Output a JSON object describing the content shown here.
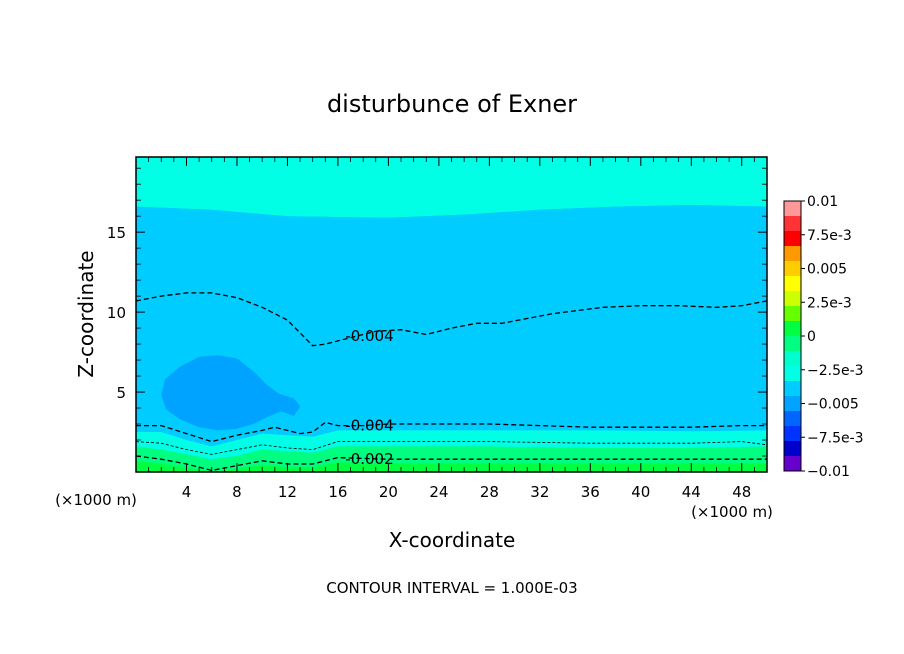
{
  "chart_data": {
    "type": "heatmap",
    "title": "disturbunce of Exner",
    "xlabel": "X-coordinate",
    "ylabel": "Z-coordinate",
    "x_unit": "(×1000 m)",
    "y_unit": "(×1000 m)",
    "xlim": [
      0,
      50
    ],
    "ylim": [
      0,
      19.7
    ],
    "x_ticks": [
      "4",
      "8",
      "12",
      "16",
      "20",
      "24",
      "28",
      "32",
      "36",
      "40",
      "44",
      "48"
    ],
    "y_ticks": [
      "5",
      "10",
      "15"
    ],
    "footer": "CONTOUR INTERVAL = 1.000E-03",
    "colorbar": {
      "labels": [
        "0.01",
        "7.5e-3",
        "0.005",
        "2.5e-3",
        "0",
        "−2.5e-3",
        "−0.005",
        "−7.5e-3",
        "−0.01"
      ],
      "min": -0.01,
      "max": 0.01
    },
    "contour_labels": [
      {
        "text": "-0.004",
        "x": 18.5,
        "z": 8.5
      },
      {
        "text": "-0.004",
        "x": 18.5,
        "z": 2.9
      },
      {
        "text": "-0.002",
        "x": 18.5,
        "z": 0.8
      }
    ],
    "contours": [
      {
        "level": -0.004,
        "points": [
          [
            0,
            10.7
          ],
          [
            2,
            11.0
          ],
          [
            4,
            11.2
          ],
          [
            6,
            11.2
          ],
          [
            8,
            10.9
          ],
          [
            10,
            10.3
          ],
          [
            12,
            9.5
          ],
          [
            13.5,
            8.3
          ],
          [
            14,
            7.9
          ],
          [
            15,
            8.0
          ],
          [
            17,
            8.4
          ],
          [
            19,
            8.8
          ],
          [
            21,
            8.9
          ],
          [
            23,
            8.6
          ],
          [
            25,
            9.0
          ],
          [
            27,
            9.3
          ],
          [
            29,
            9.3
          ],
          [
            31,
            9.6
          ],
          [
            33,
            9.9
          ],
          [
            35,
            10.1
          ],
          [
            37,
            10.3
          ],
          [
            40,
            10.4
          ],
          [
            43,
            10.4
          ],
          [
            46,
            10.3
          ],
          [
            48,
            10.4
          ],
          [
            50,
            10.7
          ]
        ]
      },
      {
        "level": -0.004,
        "points": [
          [
            0,
            2.9
          ],
          [
            2,
            2.9
          ],
          [
            4,
            2.4
          ],
          [
            6,
            1.9
          ],
          [
            8,
            2.3
          ],
          [
            10,
            2.6
          ],
          [
            11,
            2.8
          ],
          [
            12,
            2.6
          ],
          [
            13,
            2.4
          ],
          [
            14,
            2.5
          ],
          [
            15,
            3.1
          ],
          [
            16,
            2.9
          ],
          [
            18,
            2.9
          ],
          [
            20,
            3.0
          ],
          [
            24,
            3.0
          ],
          [
            28,
            3.0
          ],
          [
            32,
            2.9
          ],
          [
            36,
            2.8
          ],
          [
            40,
            2.8
          ],
          [
            44,
            2.8
          ],
          [
            48,
            2.9
          ],
          [
            50,
            2.9
          ]
        ]
      },
      {
        "level": -0.003,
        "points": [
          [
            0,
            1.9
          ],
          [
            2,
            1.8
          ],
          [
            4,
            1.4
          ],
          [
            6,
            1.1
          ],
          [
            8,
            1.4
          ],
          [
            10,
            1.7
          ],
          [
            12,
            1.5
          ],
          [
            14,
            1.4
          ],
          [
            16,
            1.9
          ],
          [
            20,
            1.9
          ],
          [
            28,
            1.9
          ],
          [
            36,
            1.8
          ],
          [
            44,
            1.8
          ],
          [
            48,
            1.9
          ],
          [
            50,
            1.7
          ]
        ]
      },
      {
        "level": -0.002,
        "points": [
          [
            0,
            1.0
          ],
          [
            2,
            0.8
          ],
          [
            4,
            0.5
          ],
          [
            6,
            0.1
          ],
          [
            8,
            0.4
          ],
          [
            10,
            0.7
          ],
          [
            12,
            0.5
          ],
          [
            14,
            0.5
          ],
          [
            16,
            0.9
          ],
          [
            20,
            0.8
          ],
          [
            28,
            0.8
          ],
          [
            36,
            0.8
          ],
          [
            44,
            0.8
          ],
          [
            48,
            0.8
          ],
          [
            50,
            0.8
          ]
        ]
      }
    ],
    "regions": [
      {
        "color": "#00ffe5",
        "boundary": [
          [
            0,
            19.7
          ],
          [
            50,
            19.7
          ],
          [
            50,
            16.6
          ],
          [
            44,
            16.7
          ],
          [
            38,
            16.6
          ],
          [
            32,
            16.4
          ],
          [
            26,
            16.1
          ],
          [
            20,
            15.9
          ],
          [
            12,
            16.0
          ],
          [
            6,
            16.4
          ],
          [
            0,
            16.6
          ]
        ]
      },
      {
        "color": "#00ccff",
        "boundary": [
          [
            0,
            16.6
          ],
          [
            6,
            16.4
          ],
          [
            12,
            16.0
          ],
          [
            20,
            15.9
          ],
          [
            26,
            16.1
          ],
          [
            32,
            16.4
          ],
          [
            38,
            16.6
          ],
          [
            44,
            16.7
          ],
          [
            50,
            16.6
          ],
          [
            50,
            2.6
          ],
          [
            44,
            2.55
          ],
          [
            36,
            2.6
          ],
          [
            28,
            2.6
          ],
          [
            20,
            2.6
          ],
          [
            16,
            2.6
          ],
          [
            14,
            2.2
          ],
          [
            12,
            2.3
          ],
          [
            10,
            2.4
          ],
          [
            8,
            2.0
          ],
          [
            6,
            1.6
          ],
          [
            4,
            2.0
          ],
          [
            2,
            2.5
          ],
          [
            0,
            2.5
          ]
        ]
      },
      {
        "color": "#00a3ff",
        "boundary": [
          [
            2,
            4.8
          ],
          [
            2.3,
            5.8
          ],
          [
            3.5,
            6.6
          ],
          [
            5,
            7.2
          ],
          [
            6.5,
            7.3
          ],
          [
            8,
            7.1
          ],
          [
            9.3,
            6.3
          ],
          [
            10.3,
            5.5
          ],
          [
            11.3,
            4.9
          ],
          [
            12.5,
            4.6
          ],
          [
            13,
            4.1
          ],
          [
            12.5,
            3.5
          ],
          [
            11.5,
            3.8
          ],
          [
            10.3,
            3.4
          ],
          [
            9.3,
            3.0
          ],
          [
            8,
            2.7
          ],
          [
            6.5,
            2.6
          ],
          [
            5,
            2.8
          ],
          [
            3.5,
            3.3
          ],
          [
            2.4,
            3.9
          ]
        ]
      },
      {
        "color": "#00ffe5",
        "boundary": [
          [
            0,
            2.5
          ],
          [
            2,
            2.5
          ],
          [
            4,
            2.0
          ],
          [
            6,
            1.6
          ],
          [
            8,
            2.0
          ],
          [
            10,
            2.4
          ],
          [
            12,
            2.3
          ],
          [
            14,
            2.2
          ],
          [
            16,
            2.6
          ],
          [
            20,
            2.6
          ],
          [
            28,
            2.6
          ],
          [
            36,
            2.6
          ],
          [
            44,
            2.55
          ],
          [
            50,
            2.6
          ],
          [
            50,
            1.6
          ],
          [
            44,
            1.5
          ],
          [
            36,
            1.5
          ],
          [
            28,
            1.6
          ],
          [
            20,
            1.6
          ],
          [
            16,
            1.6
          ],
          [
            14,
            1.2
          ],
          [
            12,
            1.3
          ],
          [
            10,
            1.4
          ],
          [
            8,
            1.0
          ],
          [
            6,
            0.8
          ],
          [
            4,
            1.1
          ],
          [
            2,
            1.4
          ],
          [
            0,
            1.6
          ]
        ]
      },
      {
        "color": "#00ff80",
        "boundary": [
          [
            0,
            1.6
          ],
          [
            2,
            1.4
          ],
          [
            4,
            1.1
          ],
          [
            6,
            0.8
          ],
          [
            8,
            1.0
          ],
          [
            10,
            1.4
          ],
          [
            12,
            1.3
          ],
          [
            14,
            1.2
          ],
          [
            16,
            1.6
          ],
          [
            20,
            1.6
          ],
          [
            28,
            1.6
          ],
          [
            36,
            1.5
          ],
          [
            44,
            1.5
          ],
          [
            50,
            1.6
          ],
          [
            50,
            0
          ],
          [
            0,
            0
          ]
        ]
      },
      {
        "color": "#00ff40",
        "boundary": [
          [
            0,
            0.7
          ],
          [
            2,
            0.5
          ],
          [
            4,
            0.3
          ],
          [
            6,
            0
          ],
          [
            8,
            0.2
          ],
          [
            10,
            0.45
          ],
          [
            12,
            0.3
          ],
          [
            14,
            0.3
          ],
          [
            16,
            0.6
          ],
          [
            20,
            0.55
          ],
          [
            28,
            0.55
          ],
          [
            36,
            0.55
          ],
          [
            44,
            0.55
          ],
          [
            50,
            0.55
          ],
          [
            50,
            0
          ],
          [
            0,
            0
          ]
        ]
      }
    ]
  },
  "colorbar_colors": [
    "#ff9999",
    "#ff3333",
    "#ff0000",
    "#ff9900",
    "#ffcc00",
    "#ffff00",
    "#ccff00",
    "#66ff00",
    "#00ff40",
    "#00ff80",
    "#00ffcc",
    "#00ffe5",
    "#00ccff",
    "#00a3ff",
    "#0066ff",
    "#0033ff",
    "#0000cc",
    "#6600cc"
  ]
}
